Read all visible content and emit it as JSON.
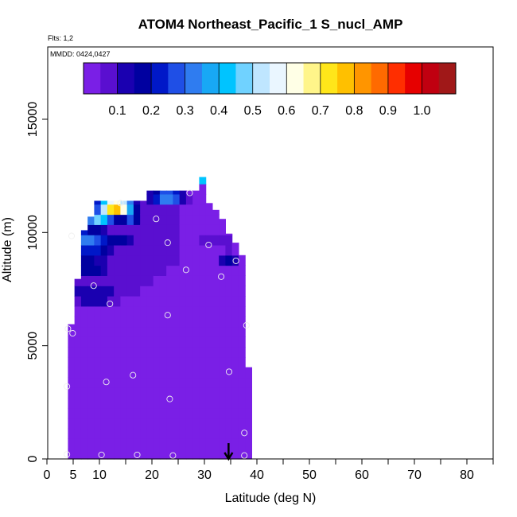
{
  "chart_data": {
    "type": "heatmap",
    "title": "ATOM4 Northeast_Pacific_1 S_nucl_AMP",
    "flights_note": "Flts: 1,2",
    "mmdd_note": "MMDD: 0424,0427",
    "xlabel": "Latitude (deg N)",
    "ylabel": "Altitude (m)",
    "xlim": [
      0,
      85
    ],
    "ylim": [
      0,
      17500
    ],
    "x_ticks": [
      0,
      5,
      10,
      20,
      30,
      40,
      50,
      60,
      70,
      80
    ],
    "x_ticks_minor": [
      15,
      25,
      35,
      45,
      55,
      65,
      75,
      85
    ],
    "y_ticks": [
      0,
      5000,
      10000,
      15000
    ],
    "colorbar": {
      "min": 0,
      "max": 1.1,
      "tick_values": [
        0.1,
        0.2,
        0.3,
        0.4,
        0.5,
        0.6,
        0.7,
        0.8,
        0.9,
        1.0
      ],
      "tick_labels": [
        "0.1",
        "0.2",
        "0.3",
        "0.4",
        "0.5",
        "0.6",
        "0.7",
        "0.8",
        "0.9",
        "1.0"
      ],
      "colors": [
        "#7a1fe6",
        "#5a0fd0",
        "#1a00b0",
        "#0000a0",
        "#0018c8",
        "#1f4fe6",
        "#2f7cf0",
        "#18a8f5",
        "#00c4ff",
        "#70d2ff",
        "#bfe6ff",
        "#eaf6ff",
        "#ffffe6",
        "#fff58a",
        "#ffe61a",
        "#ffc000",
        "#ff9500",
        "#ff6a00",
        "#ff2e00",
        "#e60000",
        "#c00010",
        "#a01818"
      ]
    },
    "cell_size": {
      "dlat": 1.25,
      "dalt": 450
    },
    "columns": [
      {
        "lat": 4.0,
        "alt_top": 5950
      },
      {
        "lat": 5.25,
        "alt_top": 7950
      },
      {
        "lat": 6.5,
        "alt_top": 10100
      },
      {
        "lat": 7.75,
        "alt_top": 10700
      },
      {
        "lat": 9.0,
        "alt_top": 11400
      },
      {
        "lat": 10.25,
        "alt_top": 11400
      },
      {
        "lat": 11.5,
        "alt_top": 11400
      },
      {
        "lat": 12.75,
        "alt_top": 11400
      },
      {
        "lat": 14.0,
        "alt_top": 11400
      },
      {
        "lat": 15.25,
        "alt_top": 11400
      },
      {
        "lat": 16.5,
        "alt_top": 11400
      },
      {
        "lat": 17.75,
        "alt_top": 11400
      },
      {
        "lat": 19.0,
        "alt_top": 11850
      },
      {
        "lat": 20.25,
        "alt_top": 11850
      },
      {
        "lat": 21.5,
        "alt_top": 11850
      },
      {
        "lat": 22.75,
        "alt_top": 11850
      },
      {
        "lat": 24.0,
        "alt_top": 11850
      },
      {
        "lat": 25.25,
        "alt_top": 11850
      },
      {
        "lat": 26.5,
        "alt_top": 11850
      },
      {
        "lat": 27.75,
        "alt_top": 11850
      },
      {
        "lat": 29.0,
        "alt_top": 12450
      },
      {
        "lat": 30.25,
        "alt_top": 11300
      },
      {
        "lat": 31.5,
        "alt_top": 11000
      },
      {
        "lat": 32.75,
        "alt_top": 10600
      },
      {
        "lat": 34.0,
        "alt_top": 9950
      },
      {
        "lat": 35.25,
        "alt_top": 9550
      },
      {
        "lat": 36.5,
        "alt_top": 9000
      },
      {
        "lat": 37.75,
        "alt_top": 4050
      }
    ],
    "blobs": [
      {
        "lat": 13.0,
        "alt": 11150,
        "sx": 2.4,
        "sy": 180,
        "v": 1.02
      },
      {
        "lat": 9.5,
        "alt": 10750,
        "sx": 2.8,
        "sy": 220,
        "v": 0.62
      },
      {
        "lat": 16.0,
        "alt": 10800,
        "sx": 1.2,
        "sy": 150,
        "v": 0.9
      },
      {
        "lat": 9.0,
        "alt": 11150,
        "sx": 1.2,
        "sy": 120,
        "v": 0.5
      },
      {
        "lat": 23.0,
        "alt": 11600,
        "sx": 2.2,
        "sy": 200,
        "v": 0.42
      },
      {
        "lat": 20.0,
        "alt": 11650,
        "sx": 1.5,
        "sy": 150,
        "v": 0.2
      },
      {
        "lat": 8.0,
        "alt": 9600,
        "sx": 3.5,
        "sy": 500,
        "v": 0.32
      },
      {
        "lat": 13.5,
        "alt": 9700,
        "sx": 3.0,
        "sy": 350,
        "v": 0.18
      },
      {
        "lat": 7.5,
        "alt": 8500,
        "sx": 3.5,
        "sy": 400,
        "v": 0.22
      },
      {
        "lat": 9.0,
        "alt": 7300,
        "sx": 4.0,
        "sy": 450,
        "v": 0.15
      },
      {
        "lat": 16.0,
        "alt": 8300,
        "sx": 4.0,
        "sy": 800,
        "v": 0.1
      },
      {
        "lat": 32.0,
        "alt": 9600,
        "sx": 2.5,
        "sy": 300,
        "v": 0.1
      },
      {
        "lat": 34.5,
        "alt": 8800,
        "sx": 1.5,
        "sy": 300,
        "v": 0.16
      },
      {
        "lat": 29.5,
        "alt": 12300,
        "sx": 0.5,
        "sy": 100,
        "v": 0.45
      }
    ],
    "base_value": 0.02,
    "points": [
      {
        "lat": 3.8,
        "alt": 200
      },
      {
        "lat": 10.4,
        "alt": 180
      },
      {
        "lat": 17.2,
        "alt": 180
      },
      {
        "lat": 24.0,
        "alt": 150
      },
      {
        "lat": 37.6,
        "alt": 150
      },
      {
        "lat": 37.6,
        "alt": 1150
      },
      {
        "lat": 3.8,
        "alt": 3200
      },
      {
        "lat": 11.3,
        "alt": 3400
      },
      {
        "lat": 16.4,
        "alt": 3700
      },
      {
        "lat": 23.4,
        "alt": 2650
      },
      {
        "lat": 34.7,
        "alt": 3850
      },
      {
        "lat": 4.0,
        "alt": 5750
      },
      {
        "lat": 4.9,
        "alt": 5550
      },
      {
        "lat": 23.0,
        "alt": 6350
      },
      {
        "lat": 38.0,
        "alt": 5900
      },
      {
        "lat": 12.0,
        "alt": 6850
      },
      {
        "lat": 8.9,
        "alt": 7650
      },
      {
        "lat": 33.2,
        "alt": 8050
      },
      {
        "lat": 26.5,
        "alt": 8350
      },
      {
        "lat": 36.0,
        "alt": 8750
      },
      {
        "lat": 23.0,
        "alt": 9550
      },
      {
        "lat": 30.8,
        "alt": 9450
      },
      {
        "lat": 4.7,
        "alt": 9850
      },
      {
        "lat": 20.8,
        "alt": 10600
      },
      {
        "lat": 14.0,
        "alt": 11300
      },
      {
        "lat": 27.2,
        "alt": 11750
      }
    ],
    "arrow": {
      "lat": 34.6,
      "alt_top": 700,
      "alt_tip": 0
    }
  }
}
